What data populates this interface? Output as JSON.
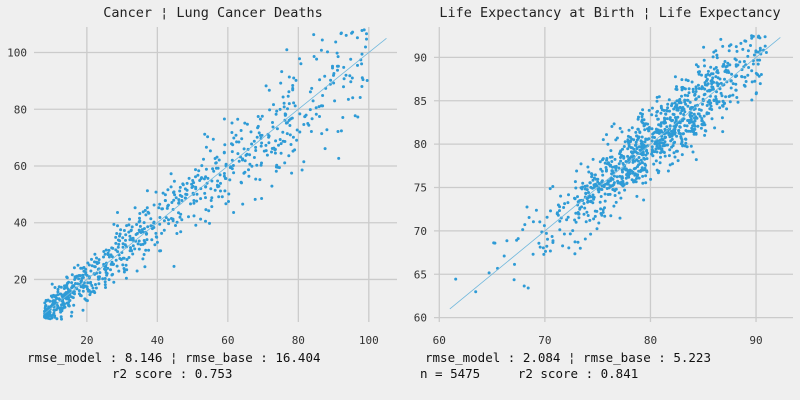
{
  "chart_data": [
    {
      "type": "scatter",
      "title": "Cancer ¦ Lung Cancer Deaths",
      "xlabel": "",
      "ylabel": "",
      "xlim": [
        5,
        108
      ],
      "ylim": [
        5,
        109
      ],
      "xticks": [
        20,
        40,
        60,
        80,
        100
      ],
      "yticks": [
        20,
        40,
        60,
        80,
        100
      ],
      "grid": true,
      "reference_line": [
        [
          8,
          8
        ],
        [
          105,
          105
        ]
      ],
      "point_count": 800,
      "x_range": [
        8,
        100
      ],
      "spread": 7.5,
      "captions": [
        "rmse_model : 8.146 ¦ rmse_base : 16.404",
        "r2 score : 0.753"
      ],
      "colors": {
        "points": "#2e9bd6",
        "reference_line": "#6fb7dc",
        "grid": "#cbcbcb",
        "background": "#efefef"
      }
    },
    {
      "type": "scatter",
      "title": "Life Expectancy at Birth ¦ Life Expectancy",
      "xlabel": "",
      "ylabel": "",
      "xlim": [
        59.5,
        93.5
      ],
      "ylim": [
        59.5,
        93.5
      ],
      "xticks": [
        60,
        70,
        80,
        90
      ],
      "yticks": [
        60,
        65,
        70,
        75,
        80,
        85,
        90
      ],
      "grid": true,
      "reference_line": [
        [
          61,
          61
        ],
        [
          92.3,
          92.3
        ]
      ],
      "point_count": 1000,
      "x_range": [
        61,
        91
      ],
      "spread": 2.1,
      "captions": [
        "rmse_model : 2.084 ¦ rmse_base : 5.223",
        "n = 5475     r2 score : 0.841"
      ],
      "colors": {
        "points": "#2e9bd6",
        "reference_line": "#6fb7dc",
        "grid": "#cbcbcb",
        "background": "#efefef"
      }
    }
  ]
}
